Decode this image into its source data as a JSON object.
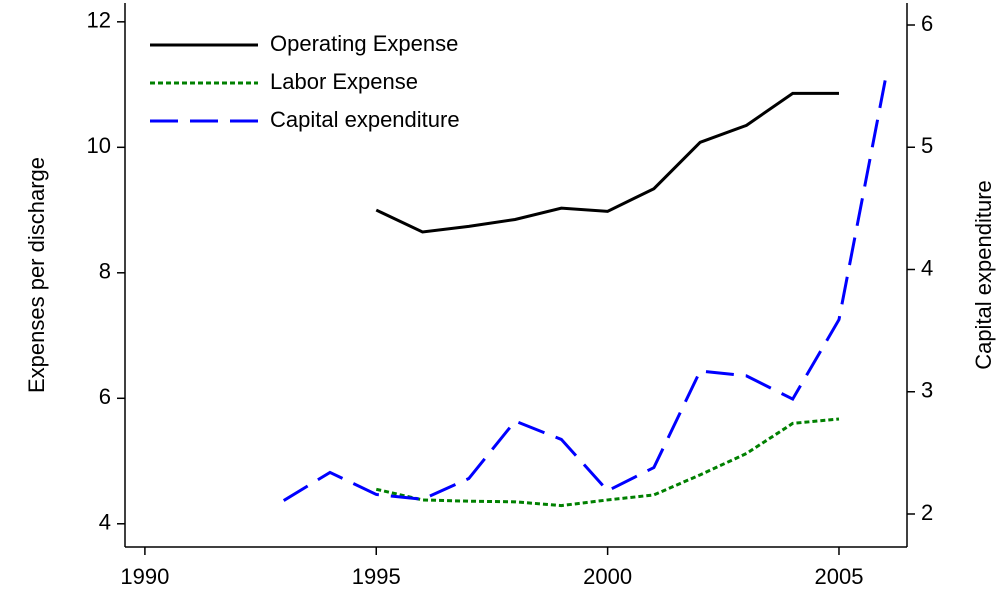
{
  "chart_data": {
    "type": "line",
    "ylabel": "Expenses per discharge",
    "y2label": "Capital expenditure",
    "x": [
      1993,
      1994,
      1995,
      1996,
      1997,
      1998,
      1999,
      2000,
      2001,
      2002,
      2003,
      2004,
      2005,
      2006
    ],
    "series": [
      {
        "name": "Operating Expense",
        "color": "#000000",
        "dash": "solid",
        "values": [
          null,
          null,
          9.0,
          8.65,
          8.74,
          8.85,
          9.03,
          8.98,
          9.34,
          10.08,
          10.35,
          10.86,
          10.86,
          null
        ]
      },
      {
        "name": "Labor Expense",
        "color": "#008000",
        "dash": "dotted",
        "values": [
          null,
          null,
          4.55,
          4.38,
          4.36,
          4.35,
          4.29,
          4.38,
          4.46,
          4.78,
          5.12,
          5.6,
          5.67,
          null
        ]
      },
      {
        "name": "Capital expenditure",
        "color": "#0000ff",
        "dash": "dashed",
        "axis": "y2",
        "values": [
          2.11,
          2.34,
          2.16,
          2.12,
          2.29,
          2.76,
          2.61,
          2.19,
          2.38,
          3.17,
          3.13,
          2.94,
          3.59,
          5.55
        ]
      }
    ],
    "xlim": [
      1989.57,
      2006.47
    ],
    "xticks": [
      1990,
      1995,
      2000,
      2005
    ],
    "ylim": [
      3.63,
      12.3
    ],
    "yticks": [
      4,
      6,
      8,
      10,
      12
    ],
    "y2lim": [
      1.73,
      6.18
    ],
    "y2ticks": [
      2,
      3,
      4,
      5,
      6
    ],
    "grid": false,
    "legend": "upper left"
  }
}
